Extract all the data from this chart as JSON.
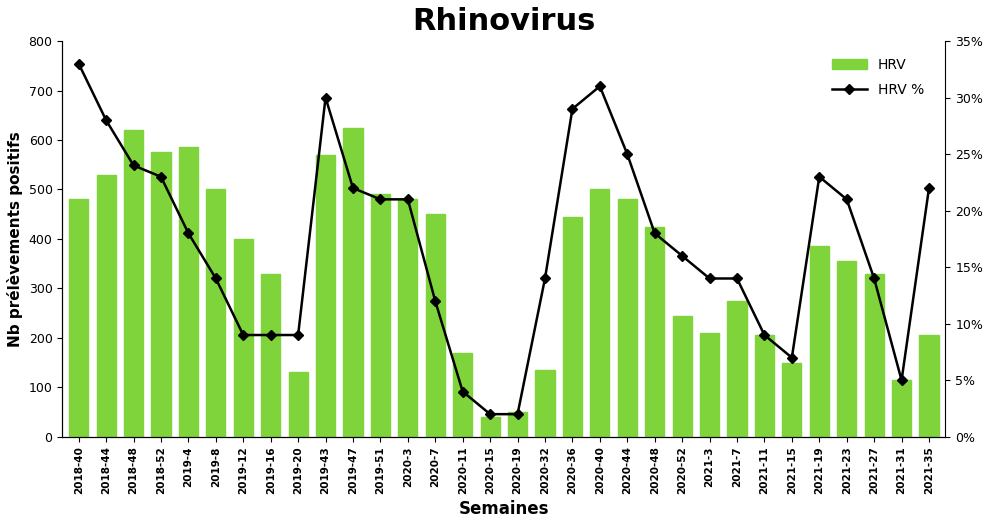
{
  "title": "Rhinovirus",
  "xlabel": "Semaines",
  "ylabel_left": "Nb prélèvements positifs",
  "legend_hrv": "HRV",
  "legend_hrv_pct": "HRV %",
  "xtick_labels": [
    "2018-40",
    "2018-44",
    "2018-48",
    "2018-52",
    "2019-4",
    "2019-8",
    "2019-12",
    "2019-16",
    "2019-20",
    "2019-43",
    "2019-47",
    "2019-51",
    "2020-3",
    "2020-7",
    "2020-11",
    "2020-15",
    "2020-19",
    "2020-32",
    "2020-36",
    "2020-40",
    "2020-44",
    "2020-48",
    "2020-52",
    "2021-3",
    "2021-7",
    "2021-11",
    "2021-15",
    "2021-19",
    "2021-23",
    "2021-27",
    "2021-31",
    "2021-35"
  ],
  "hrv_counts": [
    480,
    530,
    620,
    575,
    585,
    500,
    400,
    330,
    130,
    570,
    625,
    490,
    480,
    450,
    170,
    40,
    50,
    135,
    445,
    500,
    480,
    425,
    245,
    210,
    275,
    205,
    150,
    385,
    355,
    330,
    115,
    205
  ],
  "hrv_pct": [
    33,
    28,
    24,
    23,
    18,
    14,
    9,
    9,
    9,
    30,
    22,
    21,
    21,
    12,
    4,
    2,
    2,
    14,
    29,
    31,
    25,
    18,
    16,
    14,
    14,
    9,
    7,
    23,
    21,
    14,
    5,
    22
  ],
  "bar_color": "#7FD43B",
  "line_color": "#000000",
  "marker": "D",
  "marker_size": 5,
  "ylim_left": [
    0,
    800
  ],
  "ylim_right": [
    0,
    35
  ],
  "yticks_left": [
    0,
    100,
    200,
    300,
    400,
    500,
    600,
    700,
    800
  ],
  "yticks_right": [
    0,
    5,
    10,
    15,
    20,
    25,
    30,
    35
  ],
  "background_color": "#ffffff",
  "title_fontsize": 22,
  "label_fontsize": 11,
  "tick_fontsize": 9,
  "bar_width": 0.7
}
